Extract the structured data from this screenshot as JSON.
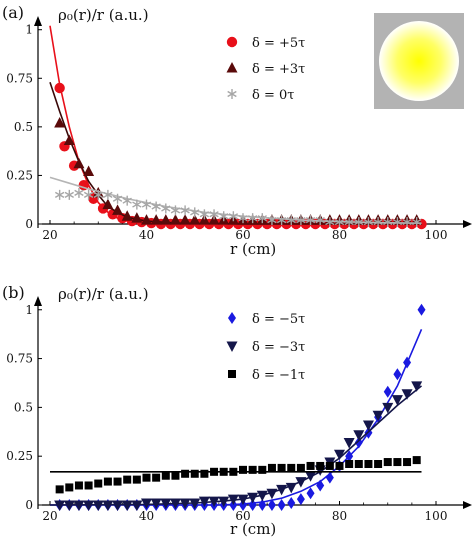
{
  "chart_data": [
    {
      "panel_label": "(a)",
      "type": "scatter",
      "ylabel": "ρ₀(r)/r (a.u.)",
      "xlabel": "r (cm)",
      "xlim": [
        20,
        100
      ],
      "ylim": [
        0,
        1.05
      ],
      "x_ticks": [
        "20",
        "40",
        "60",
        "80",
        "100"
      ],
      "y_ticks": [
        "0",
        "0.25",
        "0.5",
        "0.75",
        "1"
      ],
      "legend_position": "top-right",
      "inset": "circle-gradient",
      "series": [
        {
          "name": "δ = +5τ",
          "marker": "circle",
          "color": "#e8101a",
          "x": [
            22,
            23,
            25,
            27,
            29,
            31,
            33,
            35,
            37,
            39,
            41,
            43,
            45,
            47,
            49,
            51,
            53,
            55,
            57,
            59,
            61,
            63,
            65,
            67,
            69,
            71,
            73,
            75,
            77,
            79,
            81,
            83,
            85,
            87,
            89,
            91,
            93,
            95,
            97
          ],
          "y": [
            0.7,
            0.4,
            0.3,
            0.2,
            0.13,
            0.08,
            0.05,
            0.03,
            0.015,
            0.01,
            0.005,
            0,
            0,
            0,
            0,
            0,
            0,
            0,
            0,
            0,
            0,
            0,
            0,
            0,
            0,
            0,
            0,
            0,
            0,
            0,
            0,
            0,
            0,
            0,
            0,
            0,
            0,
            0,
            0
          ],
          "fit_color": "#e8101a",
          "fit": [
            [
              20,
              1.02
            ],
            [
              22,
              0.72
            ],
            [
              24,
              0.5
            ],
            [
              26,
              0.32
            ],
            [
              28,
              0.2
            ],
            [
              30,
              0.11
            ],
            [
              32,
              0.06
            ],
            [
              34,
              0.03
            ],
            [
              36,
              0.015
            ],
            [
              38,
              0.007
            ],
            [
              40,
              0.003
            ],
            [
              44,
              0
            ],
            [
              60,
              0
            ],
            [
              80,
              0
            ],
            [
              97,
              0
            ]
          ]
        },
        {
          "name": "δ = +3τ",
          "marker": "triangle-up",
          "color": "#5a0a0a",
          "x": [
            22,
            24,
            26,
            28,
            30,
            32,
            34,
            36,
            38,
            40,
            42,
            44,
            46,
            48,
            50,
            52,
            54,
            56,
            58,
            60,
            62,
            64,
            66,
            68,
            70,
            72,
            74,
            76,
            78,
            80,
            82,
            84,
            86,
            88,
            90,
            92,
            94,
            96
          ],
          "y": [
            0.52,
            0.43,
            0.31,
            0.27,
            0.16,
            0.1,
            0.07,
            0.04,
            0.03,
            0.02,
            0.02,
            0.02,
            0.02,
            0.02,
            0.02,
            0.02,
            0.02,
            0.02,
            0.02,
            0.02,
            0.02,
            0.02,
            0.02,
            0.02,
            0.02,
            0.02,
            0.02,
            0.02,
            0.02,
            0.02,
            0.02,
            0.02,
            0.02,
            0.02,
            0.02,
            0.02,
            0.02,
            0.02
          ],
          "fit_color": "#3a0808",
          "fit": [
            [
              20,
              0.73
            ],
            [
              22,
              0.58
            ],
            [
              24,
              0.44
            ],
            [
              26,
              0.32
            ],
            [
              28,
              0.22
            ],
            [
              30,
              0.15
            ],
            [
              32,
              0.09
            ],
            [
              34,
              0.06
            ],
            [
              36,
              0.035
            ],
            [
              40,
              0.015
            ],
            [
              46,
              0.005
            ],
            [
              60,
              0
            ],
            [
              80,
              0
            ],
            [
              97,
              0
            ]
          ]
        },
        {
          "name": "δ = 0τ",
          "marker": "asterisk",
          "color": "#a6a6a6",
          "x": [
            22,
            24,
            26,
            28,
            30,
            32,
            34,
            36,
            38,
            40,
            42,
            44,
            46,
            48,
            50,
            52,
            54,
            56,
            58,
            60,
            62,
            64,
            66,
            68,
            70,
            72,
            74,
            76,
            78,
            80,
            82,
            84,
            86,
            88,
            90,
            92,
            94,
            96
          ],
          "y": [
            0.15,
            0.15,
            0.16,
            0.15,
            0.15,
            0.15,
            0.13,
            0.12,
            0.1,
            0.1,
            0.09,
            0.08,
            0.07,
            0.07,
            0.06,
            0.05,
            0.05,
            0.04,
            0.04,
            0.03,
            0.03,
            0.03,
            0.02,
            0.02,
            0.02,
            0.02,
            0.02,
            0.02,
            0.01,
            0.01,
            0.01,
            0.01,
            0.01,
            0.01,
            0.01,
            0.01,
            0.01,
            0.01
          ],
          "fit_color": "#b5b5b5",
          "fit": [
            [
              20,
              0.24
            ],
            [
              24,
              0.21
            ],
            [
              28,
              0.18
            ],
            [
              32,
              0.155
            ],
            [
              36,
              0.13
            ],
            [
              40,
              0.11
            ],
            [
              44,
              0.09
            ],
            [
              48,
              0.075
            ],
            [
              52,
              0.06
            ],
            [
              56,
              0.05
            ],
            [
              60,
              0.04
            ],
            [
              66,
              0.03
            ],
            [
              72,
              0.02
            ],
            [
              80,
              0.012
            ],
            [
              88,
              0.007
            ],
            [
              97,
              0.004
            ]
          ]
        }
      ]
    },
    {
      "panel_label": "(b)",
      "type": "scatter",
      "ylabel": "ρ₀(r)/r (a.u.)",
      "xlabel": "r (cm)",
      "xlim": [
        20,
        100
      ],
      "ylim": [
        0,
        1.05
      ],
      "x_ticks": [
        "20",
        "40",
        "60",
        "80",
        "100"
      ],
      "y_ticks": [
        "0",
        "0.25",
        "0.5",
        "0.75",
        "1"
      ],
      "legend_position": "top-right",
      "series": [
        {
          "name": "δ = −5τ",
          "marker": "diamond",
          "color": "#1a1ae0",
          "x": [
            22,
            24,
            26,
            28,
            30,
            32,
            34,
            36,
            38,
            40,
            42,
            44,
            46,
            48,
            50,
            52,
            54,
            56,
            58,
            60,
            62,
            64,
            66,
            68,
            70,
            72,
            74,
            76,
            78,
            80,
            82,
            84,
            86,
            88,
            90,
            92,
            94,
            97
          ],
          "y": [
            0,
            0,
            0,
            0,
            0,
            0,
            0,
            0,
            0,
            0,
            0,
            0,
            0,
            0,
            0,
            0,
            0,
            0,
            0,
            0,
            0,
            0,
            0,
            0,
            0.01,
            0.03,
            0.06,
            0.1,
            0.14,
            0.2,
            0.25,
            0.32,
            0.37,
            0.45,
            0.58,
            0.67,
            0.73,
            1.0
          ],
          "fit_color": "#1a1ae0",
          "fit": [
            [
              20,
              0
            ],
            [
              40,
              0
            ],
            [
              55,
              0
            ],
            [
              60,
              0.005
            ],
            [
              64,
              0.015
            ],
            [
              68,
              0.035
            ],
            [
              72,
              0.07
            ],
            [
              76,
              0.12
            ],
            [
              80,
              0.2
            ],
            [
              84,
              0.3
            ],
            [
              88,
              0.44
            ],
            [
              92,
              0.61
            ],
            [
              97,
              0.9
            ]
          ]
        },
        {
          "name": "δ = −3τ",
          "marker": "triangle-down",
          "color": "#14164a",
          "x": [
            22,
            24,
            26,
            28,
            30,
            32,
            34,
            36,
            38,
            40,
            42,
            44,
            46,
            48,
            50,
            52,
            54,
            56,
            58,
            60,
            62,
            64,
            66,
            68,
            70,
            72,
            74,
            76,
            78,
            80,
            82,
            84,
            86,
            88,
            90,
            92,
            94,
            96
          ],
          "y": [
            0,
            0,
            0,
            0,
            0,
            0,
            0,
            0,
            0,
            0.01,
            0.01,
            0.01,
            0.01,
            0.01,
            0.01,
            0.02,
            0.02,
            0.02,
            0.03,
            0.03,
            0.04,
            0.05,
            0.06,
            0.08,
            0.09,
            0.12,
            0.15,
            0.18,
            0.22,
            0.26,
            0.32,
            0.36,
            0.41,
            0.46,
            0.5,
            0.54,
            0.57,
            0.61
          ],
          "fit_color": "#14164a",
          "fit": [
            [
              20,
              0
            ],
            [
              40,
              0.003
            ],
            [
              50,
              0.01
            ],
            [
              56,
              0.02
            ],
            [
              60,
              0.03
            ],
            [
              64,
              0.05
            ],
            [
              68,
              0.08
            ],
            [
              72,
              0.12
            ],
            [
              76,
              0.17
            ],
            [
              80,
              0.24
            ],
            [
              84,
              0.33
            ],
            [
              88,
              0.42
            ],
            [
              92,
              0.51
            ],
            [
              97,
              0.61
            ]
          ]
        },
        {
          "name": "δ = −1τ",
          "marker": "square",
          "color": "#000000",
          "x": [
            22,
            24,
            26,
            28,
            30,
            32,
            34,
            36,
            38,
            40,
            42,
            44,
            46,
            48,
            50,
            52,
            54,
            56,
            58,
            60,
            62,
            64,
            66,
            68,
            70,
            72,
            74,
            76,
            78,
            80,
            82,
            84,
            86,
            88,
            90,
            92,
            94,
            96
          ],
          "y": [
            0.08,
            0.09,
            0.1,
            0.1,
            0.11,
            0.12,
            0.12,
            0.13,
            0.13,
            0.14,
            0.14,
            0.15,
            0.15,
            0.16,
            0.16,
            0.16,
            0.17,
            0.17,
            0.17,
            0.18,
            0.18,
            0.18,
            0.19,
            0.19,
            0.19,
            0.19,
            0.2,
            0.2,
            0.2,
            0.2,
            0.21,
            0.21,
            0.21,
            0.21,
            0.22,
            0.22,
            0.22,
            0.23
          ],
          "fit_color": "#000000",
          "fit": [
            [
              20,
              0.17
            ],
            [
              97,
              0.17
            ]
          ]
        }
      ]
    }
  ]
}
